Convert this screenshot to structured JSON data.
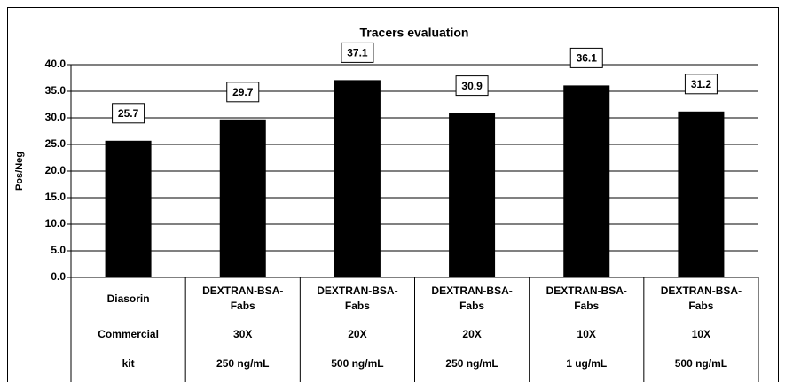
{
  "chart_data": {
    "type": "bar",
    "title": "Tracers evaluation",
    "y_label": "Pos/Neg",
    "categories": [
      [
        "Diasorin",
        "Commercial",
        "kit"
      ],
      [
        "DEXTRAN-BSA-Fabs",
        "30X",
        "250 ng/mL"
      ],
      [
        "DEXTRAN-BSA-Fabs",
        "20X",
        "500 ng/mL"
      ],
      [
        "DEXTRAN-BSA-Fabs",
        "20X",
        "250 ng/mL"
      ],
      [
        "DEXTRAN-BSA-Fabs",
        "10X",
        "1 ug/mL"
      ],
      [
        "DEXTRAN-BSA-Fabs",
        "10X",
        "500 ng/mL"
      ]
    ],
    "values": [
      25.7,
      29.7,
      37.1,
      30.9,
      36.1,
      31.2
    ],
    "color": "#000000",
    "ylim": [
      0,
      40
    ],
    "yticks": [
      {
        "value": 0,
        "label": "0.0"
      },
      {
        "value": 5,
        "label": "5.0"
      },
      {
        "value": 10,
        "label": "10.0"
      },
      {
        "value": 15,
        "label": "15.0"
      },
      {
        "value": 20,
        "label": "20.0"
      },
      {
        "value": 25,
        "label": "25.0"
      },
      {
        "value": 30,
        "label": "30.0"
      },
      {
        "value": 35,
        "label": "35.0"
      },
      {
        "value": 40,
        "label": "40.0"
      }
    ],
    "grid": true
  }
}
